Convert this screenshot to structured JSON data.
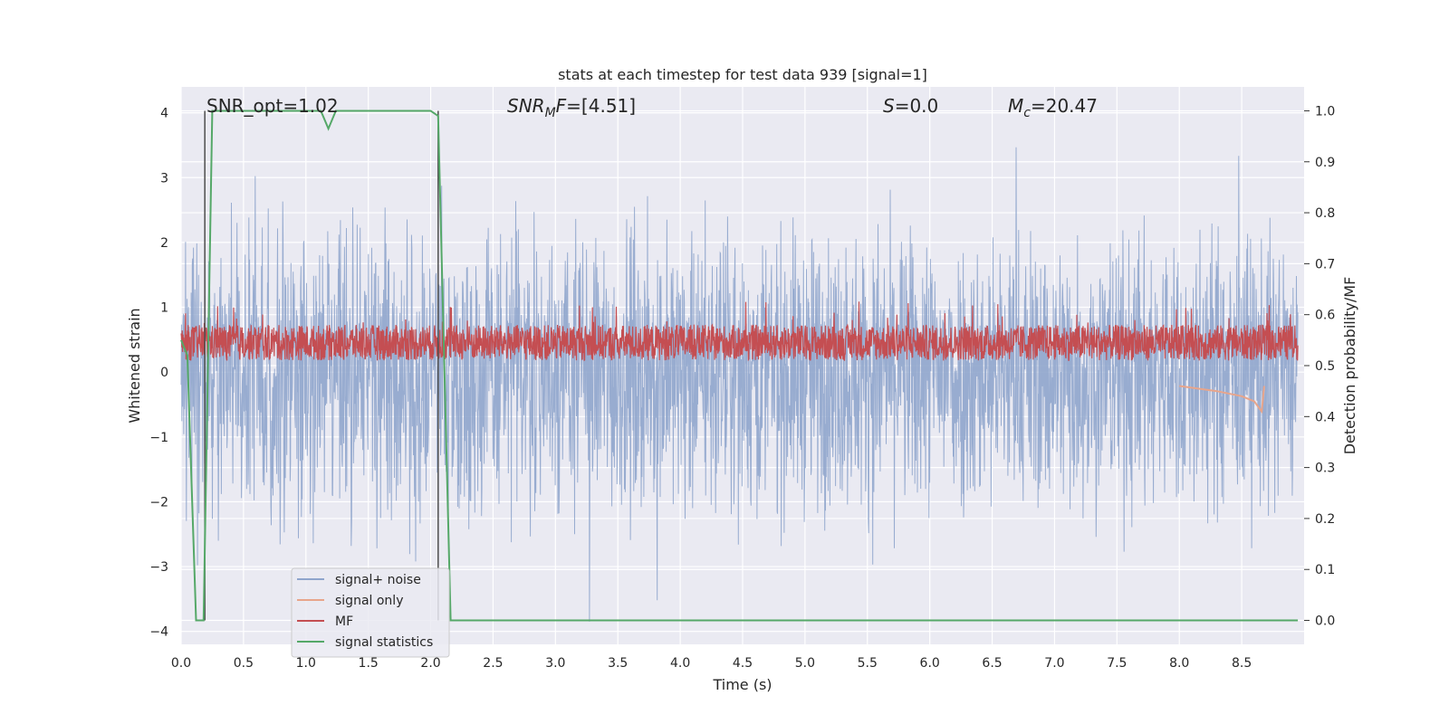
{
  "chart_data": {
    "type": "line",
    "title": "stats at each timestep for test data 939 [signal=1]",
    "xlabel": "Time (s)",
    "ylabel": "Whitened strain",
    "y2label": "Detection probability/MF",
    "xlim": [
      0.0,
      9.0
    ],
    "ylim": [
      -4.2,
      4.4
    ],
    "y2lim": [
      -0.047,
      1.047
    ],
    "xticks": [
      "0.0",
      "0.5",
      "1.0",
      "1.5",
      "2.0",
      "2.5",
      "3.0",
      "3.5",
      "4.0",
      "4.5",
      "5.0",
      "5.5",
      "6.0",
      "6.5",
      "7.0",
      "7.5",
      "8.0",
      "8.5"
    ],
    "yticks": [
      "4",
      "3",
      "2",
      "1",
      "0",
      "−1",
      "−2",
      "−3",
      "−4"
    ],
    "y2ticks": [
      "1.0",
      "0.9",
      "0.8",
      "0.7",
      "0.6",
      "0.5",
      "0.4",
      "0.3",
      "0.2",
      "0.1",
      "0.0"
    ],
    "grid": true,
    "legend_placement": "lower-left",
    "colors": {
      "background": "#eaeaf2",
      "signal_noise": "#8fa5cc",
      "signal_only": "#e8a58b",
      "mf": "#c44e52",
      "statistics": "#55a868",
      "vline": "#4d4d4d"
    },
    "series": [
      {
        "name": "signal+ noise",
        "style": "dense noise trace, amplitude about ±2.5 with spikes up to ±4"
      },
      {
        "name": "signal only",
        "x": [
          8.0,
          8.3,
          8.5,
          8.6,
          8.66,
          8.68
        ],
        "y": [
          0.46,
          0.45,
          0.44,
          0.43,
          0.41,
          0.46
        ]
      },
      {
        "name": "MF",
        "style": "dense trace on right axis between 0.50 and 0.63"
      },
      {
        "name": "signal statistics",
        "axis": "right",
        "x": [
          0.0,
          0.05,
          0.12,
          0.18,
          0.25,
          1.12,
          1.18,
          1.24,
          2.0,
          2.06,
          2.16,
          8.95
        ],
        "y": [
          0.55,
          0.52,
          0.0,
          0.0,
          1.0,
          1.0,
          0.965,
          1.0,
          1.0,
          0.99,
          0.0,
          0.0
        ]
      }
    ],
    "vlines": [
      0.19,
      2.06
    ],
    "annotations": [
      {
        "text": "SNR_opt=1.02"
      },
      {
        "text": "SNR",
        "sub": "M",
        "tail": "F=[4.51]"
      },
      {
        "text": "S",
        "tail": "=0.0"
      },
      {
        "text": "M",
        "sub": "c",
        "tail": "=20.47"
      }
    ]
  }
}
